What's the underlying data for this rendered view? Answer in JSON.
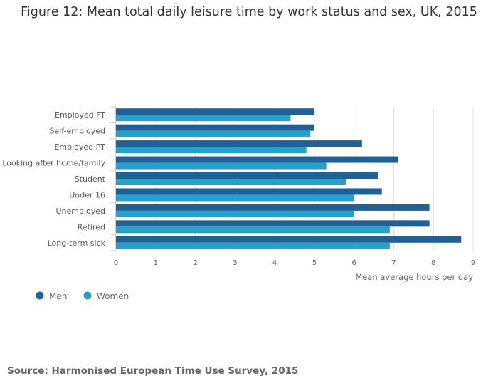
{
  "chart_data": {
    "type": "bar",
    "orientation": "horizontal",
    "title": "Figure 12: Mean total daily leisure time by work status and sex, UK, 2015",
    "xlabel": "Mean average hours per day",
    "ylabel": "",
    "xlim": [
      0,
      9
    ],
    "xticks": [
      0,
      1,
      2,
      3,
      4,
      5,
      6,
      7,
      8,
      9
    ],
    "grid": true,
    "legend_placement": "bottom-left",
    "categories": [
      "Employed FT",
      "Self-employed",
      "Employed PT",
      "Looking after home/family",
      "Student",
      "Under 16",
      "Unemployed",
      "Retired",
      "Long-term sick"
    ],
    "series": [
      {
        "name": "Men",
        "color": "#206095",
        "values": [
          5.0,
          5.0,
          6.2,
          7.1,
          6.6,
          6.7,
          7.9,
          7.9,
          8.7
        ]
      },
      {
        "name": "Women",
        "color": "#27a0cc",
        "values": [
          4.4,
          4.9,
          4.8,
          5.3,
          5.8,
          6.0,
          6.0,
          6.9,
          6.9
        ]
      }
    ]
  },
  "source": "Source: Harmonised European Time Use Survey, 2015"
}
